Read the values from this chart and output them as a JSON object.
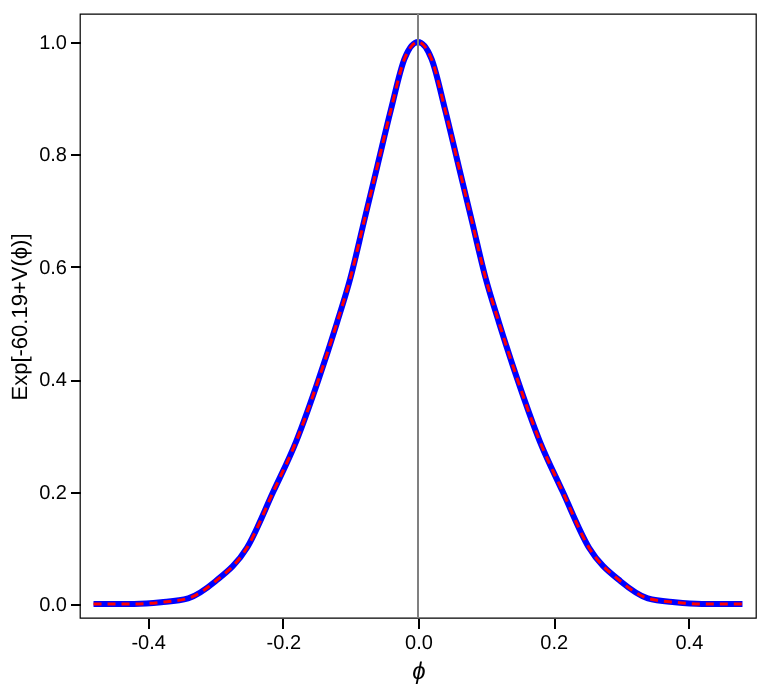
{
  "chart_data": {
    "type": "line",
    "xlabel": "ϕ",
    "ylabel": "Exp[-60.19+V(ϕ)]",
    "x": [
      -0.48,
      -0.42,
      -0.38,
      -0.34,
      -0.3,
      -0.253,
      -0.214,
      -0.18,
      -0.147,
      -0.12,
      -0.1,
      -0.08,
      -0.06,
      -0.04,
      -0.02,
      0,
      0.02,
      0.04,
      0.06,
      0.08,
      0.1,
      0.12,
      0.147,
      0.18,
      0.214,
      0.253,
      0.3,
      0.34,
      0.38,
      0.42,
      0.48
    ],
    "series": [
      {
        "color": "#0000ff",
        "line_style": "solid",
        "values": [
          0,
          0,
          0.003,
          0.01,
          0.04,
          0.1,
          0.2,
          0.29,
          0.4,
          0.5,
          0.58,
          0.68,
          0.78,
          0.88,
          0.97,
          1.0,
          0.97,
          0.88,
          0.78,
          0.68,
          0.58,
          0.5,
          0.4,
          0.29,
          0.2,
          0.1,
          0.04,
          0.01,
          0.003,
          0,
          0
        ]
      },
      {
        "color": "#ff0000",
        "line_style": "dashed",
        "values": [
          0,
          0,
          0.003,
          0.01,
          0.04,
          0.1,
          0.2,
          0.29,
          0.4,
          0.5,
          0.58,
          0.68,
          0.78,
          0.88,
          0.97,
          1.0,
          0.97,
          0.88,
          0.78,
          0.68,
          0.58,
          0.5,
          0.4,
          0.29,
          0.2,
          0.1,
          0.04,
          0.01,
          0.003,
          0,
          0
        ]
      }
    ],
    "xlim": [
      -0.5,
      0.5
    ],
    "ylim": [
      -0.025,
      1.05
    ],
    "xticks": [
      -0.4,
      -0.2,
      {
        "value": 0,
        "label": "0.0"
      },
      0.2,
      0.4
    ],
    "yticks": [
      {
        "value": 0,
        "label": "0.0"
      },
      0.2,
      0.4,
      0.6,
      0.8,
      {
        "value": 1,
        "label": "1.0"
      }
    ],
    "ref_lines": [
      {
        "axis": "x",
        "value": 0,
        "color": "#808080"
      }
    ],
    "grid": false
  }
}
